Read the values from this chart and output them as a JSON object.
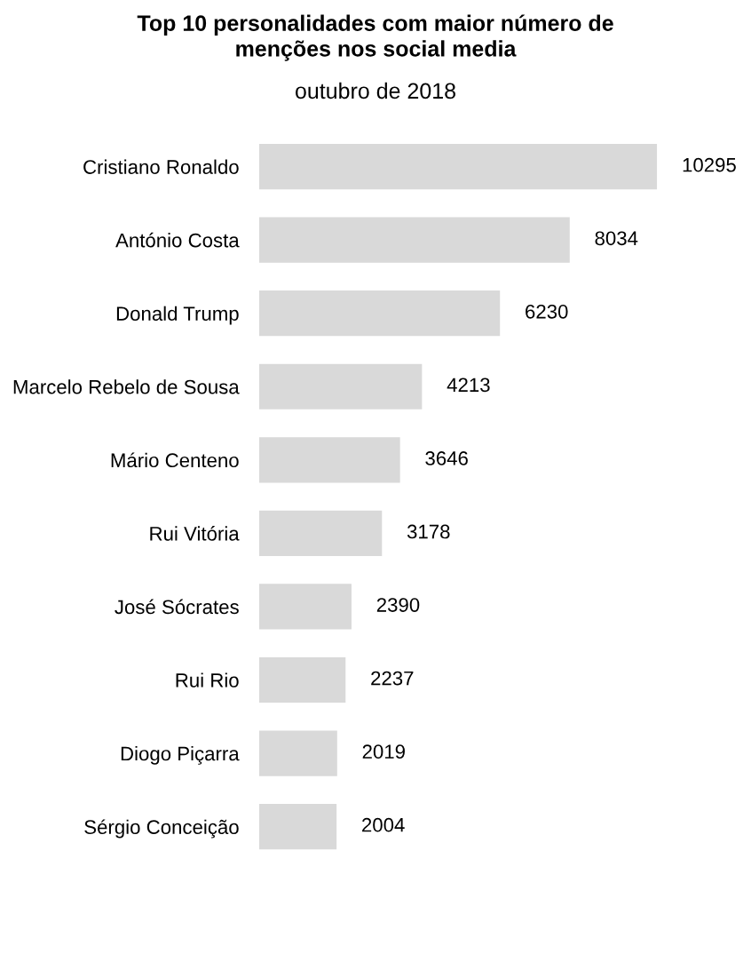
{
  "chart_data": {
    "type": "bar",
    "orientation": "horizontal",
    "title": "Top 10 personalidades com maior número de\nmenções nos social media",
    "subtitle": "outubro de 2018",
    "categories": [
      "Cristiano Ronaldo",
      "António Costa",
      "Donald Trump",
      "Marcelo Rebelo de Sousa",
      "Mário Centeno",
      "Rui Vitória",
      "José Sócrates",
      "Rui Rio",
      "Diogo Piçarra",
      "Sérgio Conceição"
    ],
    "values": [
      10295,
      8034,
      6230,
      4213,
      3646,
      3178,
      2390,
      2237,
      2019,
      2004
    ],
    "color": "#d9d9d9",
    "data_labels": true,
    "grid": false,
    "legend": false
  }
}
